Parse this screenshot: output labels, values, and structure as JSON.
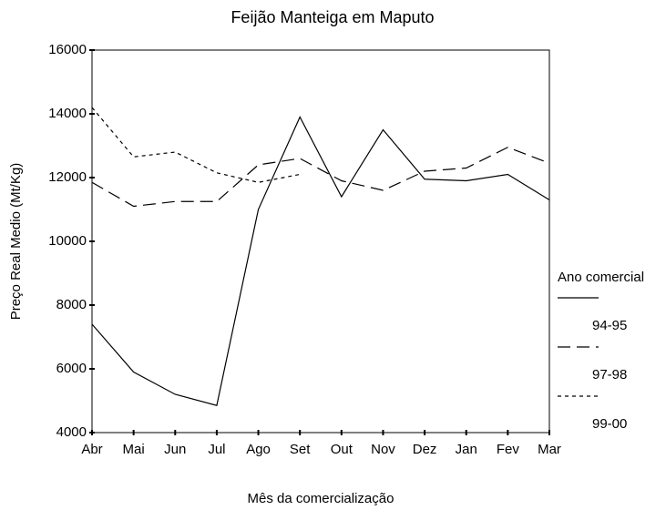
{
  "chart_data": {
    "type": "line",
    "title": "Feijão Manteiga em Maputo",
    "x_label": "Mês da comercialização",
    "y_label": "Preço Real Medio (Mt/Kg)",
    "legend_title": "Ano comercial",
    "categories": [
      "Abr",
      "Mai",
      "Jun",
      "Jul",
      "Ago",
      "Set",
      "Out",
      "Nov",
      "Dez",
      "Jan",
      "Fev",
      "Mar"
    ],
    "series": [
      {
        "name": "94-95",
        "color": "#000000",
        "dash": "none",
        "values": [
          7400,
          5900,
          5200,
          4850,
          11000,
          13900,
          11400,
          13500,
          11950,
          11900,
          12100,
          11300
        ]
      },
      {
        "name": "97-98",
        "color": "#000000",
        "dash": "14 7",
        "values": [
          11850,
          11100,
          11250,
          11250,
          12400,
          12600,
          11900,
          11600,
          12200,
          12300,
          12950,
          12450
        ]
      },
      {
        "name": "99-00",
        "color": "#000000",
        "dash": "4 4",
        "values": [
          14200,
          12650,
          12800,
          12150,
          11850,
          12100,
          null,
          null,
          null,
          null,
          null,
          null
        ]
      }
    ],
    "ylim": [
      4000,
      16000
    ],
    "yticks": [
      4000,
      6000,
      8000,
      10000,
      12000,
      14000,
      16000
    ],
    "grid": false
  }
}
